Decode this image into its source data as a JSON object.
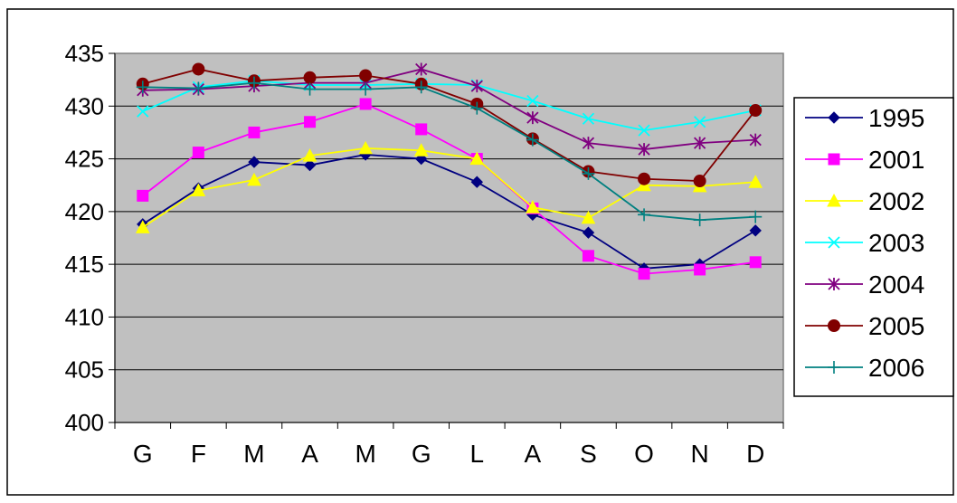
{
  "chart_data": {
    "type": "line",
    "title": "",
    "xlabel": "",
    "ylabel": "",
    "categories": [
      "G",
      "F",
      "M",
      "A",
      "M",
      "G",
      "L",
      "A",
      "S",
      "O",
      "N",
      "D"
    ],
    "ylim": [
      400,
      435
    ],
    "yticks": [
      400,
      405,
      410,
      415,
      420,
      425,
      430,
      435
    ],
    "grid": true,
    "legend_position": "right",
    "colors": {
      "plot_background": "#c0c0c0",
      "chart_background": "#ffffff",
      "gridline": "#000000"
    },
    "series": [
      {
        "name": "1995",
        "color": "#000080",
        "marker": "diamond",
        "values": [
          418.8,
          422.2,
          424.7,
          424.4,
          425.4,
          425.0,
          422.8,
          419.7,
          418.0,
          414.6,
          415.0,
          418.2
        ]
      },
      {
        "name": "2001",
        "color": "#ff00ff",
        "marker": "square",
        "values": [
          421.5,
          425.6,
          427.5,
          428.5,
          430.2,
          427.8,
          425.0,
          420.3,
          415.8,
          414.1,
          414.5,
          415.2
        ]
      },
      {
        "name": "2002",
        "color": "#ffff00",
        "marker": "triangle",
        "values": [
          418.5,
          422.0,
          423.0,
          425.3,
          426.0,
          425.8,
          425.0,
          420.4,
          419.4,
          422.5,
          422.4,
          422.8
        ]
      },
      {
        "name": "2003",
        "color": "#00ffff",
        "marker": "x",
        "values": [
          429.5,
          431.8,
          432.4,
          432.0,
          432.0,
          432.1,
          432.0,
          430.5,
          428.8,
          427.7,
          428.5,
          429.6
        ]
      },
      {
        "name": "2004",
        "color": "#800080",
        "marker": "asterisk",
        "values": [
          431.5,
          431.6,
          431.9,
          432.2,
          432.2,
          433.5,
          431.9,
          428.9,
          426.5,
          425.9,
          426.5,
          426.8
        ]
      },
      {
        "name": "2005",
        "color": "#800000",
        "marker": "circle",
        "values": [
          432.1,
          433.5,
          432.4,
          432.7,
          432.9,
          432.1,
          430.2,
          426.9,
          423.8,
          423.1,
          422.9,
          429.6
        ]
      },
      {
        "name": "2006",
        "color": "#008080",
        "marker": "plus",
        "values": [
          431.8,
          431.7,
          432.2,
          431.6,
          431.6,
          431.8,
          429.8,
          426.8,
          423.6,
          419.7,
          419.2,
          419.5
        ]
      }
    ]
  }
}
